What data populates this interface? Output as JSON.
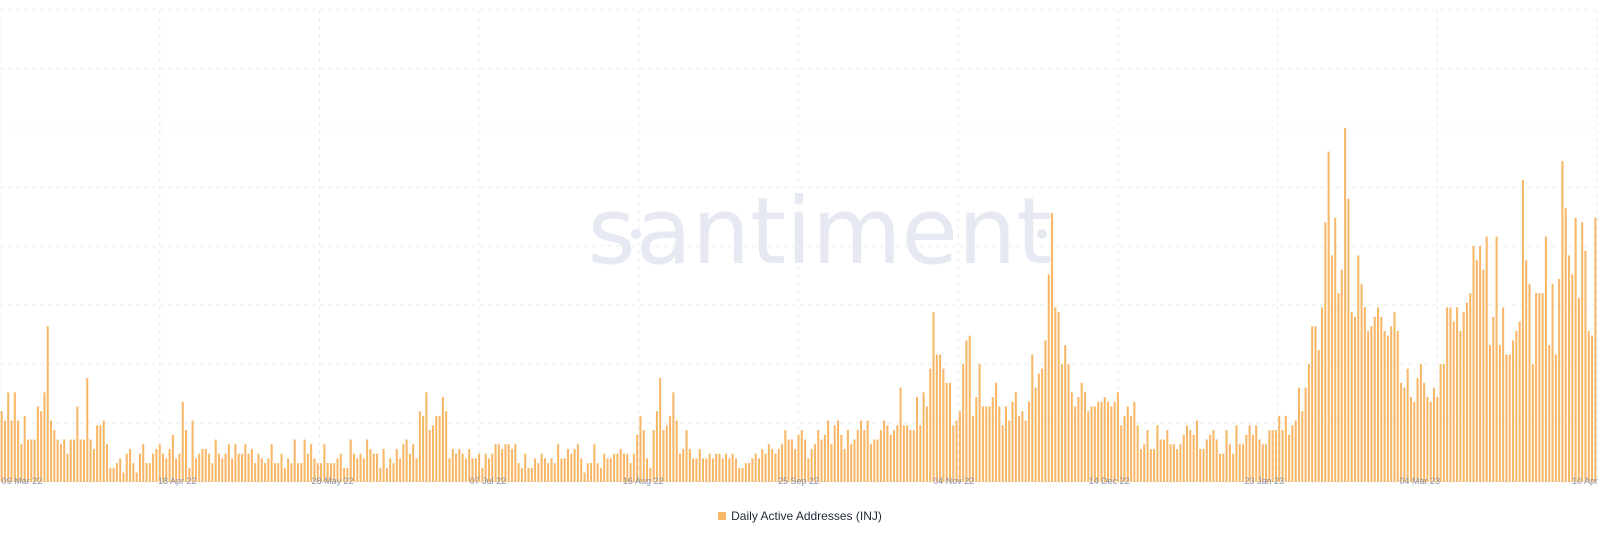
{
  "watermark": "santiment",
  "chart_data": {
    "type": "bar",
    "series": [
      {
        "name": "Daily Active Addresses (INJ)",
        "color": "#f7b766"
      }
    ],
    "x_tick_labels": [
      "09 Mar 22",
      "18 Apr 22",
      "28 May 22",
      "07 Jul 22",
      "16 Aug 22",
      "25 Sep 22",
      "04 Nov 22",
      "14 Dec 22",
      "23 Jan 23",
      "04 Mar 23",
      "10 Apr"
    ],
    "ylim": [
      0,
      100
    ],
    "y_axis_labels": "none",
    "grid": true,
    "legend_position": "bottom-center",
    "values": [
      15,
      13,
      19,
      13,
      19,
      13,
      8,
      14,
      9,
      9,
      9,
      16,
      15,
      19,
      33,
      13,
      11,
      9,
      8,
      9,
      6,
      9,
      9,
      16,
      9,
      9,
      22,
      9,
      7,
      12,
      12,
      13,
      8,
      3,
      3,
      4,
      5,
      2,
      6,
      7,
      4,
      2,
      6,
      8,
      4,
      4,
      6,
      7,
      8,
      6,
      5,
      7,
      10,
      5,
      6,
      17,
      11,
      3,
      13,
      5,
      6,
      7,
      7,
      6,
      4,
      9,
      6,
      5,
      6,
      8,
      5,
      8,
      6,
      6,
      8,
      6,
      7,
      4,
      6,
      5,
      4,
      5,
      8,
      4,
      4,
      6,
      3,
      5,
      4,
      9,
      4,
      4,
      9,
      6,
      8,
      5,
      4,
      4,
      8,
      4,
      4,
      4,
      5,
      6,
      3,
      3,
      9,
      6,
      5,
      6,
      5,
      9,
      7,
      6,
      6,
      3,
      7,
      3,
      5,
      4,
      7,
      5,
      8,
      9,
      6,
      8,
      5,
      15,
      14,
      19,
      11,
      12,
      14,
      14,
      18,
      15,
      5,
      7,
      6,
      7,
      6,
      5,
      7,
      5,
      5,
      6,
      3,
      6,
      5,
      6,
      8,
      8,
      7,
      8,
      8,
      7,
      8,
      4,
      3,
      6,
      3,
      3,
      5,
      4,
      6,
      5,
      4,
      5,
      4,
      8,
      5,
      5,
      7,
      6,
      7,
      8,
      5,
      2,
      4,
      4,
      8,
      4,
      3,
      6,
      5,
      5,
      6,
      6,
      7,
      6,
      6,
      4,
      6,
      10,
      14,
      11,
      5,
      3,
      11,
      15,
      22,
      11,
      12,
      14,
      19,
      13,
      6,
      7,
      11,
      7,
      5,
      5,
      7,
      5,
      5,
      6,
      5,
      6,
      6,
      5,
      6,
      5,
      6,
      5,
      3,
      3,
      4,
      4,
      5,
      6,
      5,
      7,
      6,
      8,
      7,
      6,
      7,
      8,
      11,
      9,
      9,
      7,
      10,
      11,
      9,
      5,
      7,
      8,
      11,
      9,
      10,
      13,
      8,
      12,
      13,
      10,
      7,
      11,
      8,
      9,
      11,
      13,
      11,
      13,
      8,
      9,
      9,
      11,
      13,
      12,
      10,
      11,
      12,
      20,
      12,
      12,
      11,
      11,
      18,
      12,
      19,
      16,
      24,
      36,
      27,
      27,
      24,
      21,
      21,
      12,
      13,
      15,
      25,
      30,
      31,
      14,
      18,
      25,
      16,
      16,
      16,
      18,
      21,
      16,
      12,
      16,
      13,
      17,
      19,
      14,
      15,
      13,
      17,
      27,
      20,
      23,
      24,
      30,
      44,
      57,
      37,
      36,
      25,
      29,
      25,
      19,
      16,
      18,
      21,
      19,
      15,
      16,
      16,
      17,
      17,
      18,
      17,
      16,
      17,
      19,
      12,
      14,
      16,
      14,
      17,
      12,
      7,
      8,
      11,
      7,
      7,
      12,
      9,
      9,
      11,
      8,
      8,
      7,
      8,
      10,
      12,
      11,
      10,
      13,
      7,
      7,
      9,
      10,
      11,
      9,
      6,
      6,
      11,
      8,
      6,
      12,
      8,
      8,
      10,
      12,
      10,
      12,
      9,
      8,
      8,
      11,
      11,
      11,
      14,
      11,
      14,
      10,
      12,
      13,
      20,
      15,
      20,
      25,
      33,
      33,
      28,
      37,
      55,
      70,
      48,
      56,
      40,
      45,
      75,
      60,
      36,
      35,
      48,
      42,
      37,
      32,
      33,
      35,
      37,
      35,
      32,
      31,
      33,
      36,
      32,
      21,
      20,
      24,
      18,
      17,
      22,
      25,
      21,
      18,
      17,
      20,
      18,
      25,
      25,
      37,
      37,
      34,
      37,
      32,
      36,
      38,
      40,
      50,
      47,
      50,
      45,
      52,
      29,
      35,
      52,
      29,
      37,
      27,
      27,
      30,
      32,
      34,
      64,
      47,
      42,
      25,
      40,
      40,
      40,
      52,
      29,
      42,
      27,
      43,
      68,
      58,
      48,
      44,
      56,
      39,
      55,
      49,
      32,
      31,
      56
    ]
  },
  "legend": {
    "label": "Daily Active Addresses (INJ)"
  }
}
